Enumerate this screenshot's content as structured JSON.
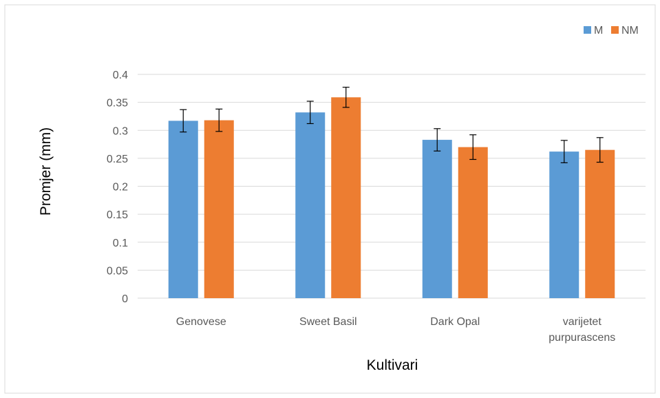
{
  "chart_data": {
    "type": "bar",
    "title": "",
    "xlabel": "Kultivari",
    "ylabel": "Promjer (mm)",
    "ylim": [
      0,
      0.4
    ],
    "yticks": [
      "0",
      "0.05",
      "0.1",
      "0.15",
      "0.2",
      "0.25",
      "0.3",
      "0.35",
      "0.4"
    ],
    "ytick_values": [
      0,
      0.05,
      0.1,
      0.15,
      0.2,
      0.25,
      0.3,
      0.35,
      0.4
    ],
    "grid": true,
    "legend_position": "top-right",
    "categories": [
      [
        "Genovese"
      ],
      [
        "Sweet Basil"
      ],
      [
        "Dark Opal"
      ],
      [
        "varijetet",
        "purpurascens"
      ]
    ],
    "series": [
      {
        "name": "M",
        "color": "#5B9BD5",
        "values": [
          0.317,
          0.332,
          0.283,
          0.262
        ],
        "errors": [
          0.02,
          0.02,
          0.02,
          0.02
        ]
      },
      {
        "name": "NM",
        "color": "#ED7D31",
        "values": [
          0.318,
          0.359,
          0.27,
          0.265
        ],
        "errors": [
          0.02,
          0.018,
          0.022,
          0.022
        ]
      }
    ]
  }
}
